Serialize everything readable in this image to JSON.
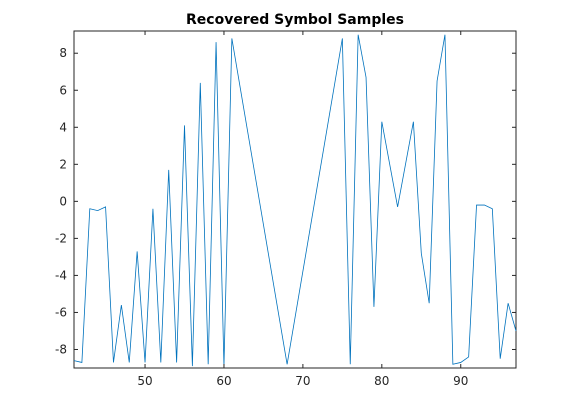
{
  "chart_data": {
    "type": "line",
    "title": "Recovered Symbol Samples",
    "xlabel": "",
    "ylabel": "",
    "xlim": [
      41,
      97
    ],
    "ylim": [
      -9,
      9.2
    ],
    "xticks": [
      50,
      60,
      70,
      80,
      90
    ],
    "yticks": [
      -8,
      -6,
      -4,
      -2,
      0,
      2,
      4,
      6,
      8
    ],
    "grid": false,
    "legend": "none",
    "line_color": "#0072bd",
    "axis_color": "#262626",
    "x": [
      41,
      42,
      43,
      44,
      45,
      46,
      47,
      48,
      49,
      50,
      51,
      52,
      53,
      54,
      55,
      56,
      57,
      58,
      59,
      60,
      61,
      68,
      75,
      76,
      77,
      78,
      79,
      80,
      82,
      84,
      85,
      86,
      87,
      88,
      89,
      90,
      91,
      92,
      93,
      94,
      95,
      96,
      97
    ],
    "y": [
      -8.6,
      -8.7,
      -0.4,
      -0.5,
      -0.3,
      -8.7,
      -5.6,
      -8.7,
      -2.7,
      -8.7,
      -0.4,
      -8.7,
      1.7,
      -8.7,
      4.1,
      -8.9,
      6.4,
      -8.8,
      8.6,
      -8.9,
      8.8,
      -8.8,
      8.8,
      -8.8,
      9.0,
      6.7,
      -5.7,
      4.3,
      -0.3,
      4.3,
      -2.8,
      -5.5,
      6.5,
      9.0,
      -8.8,
      -8.7,
      -8.4,
      -0.2,
      -0.2,
      -0.4,
      -8.5,
      -5.5,
      -7.0
    ]
  }
}
